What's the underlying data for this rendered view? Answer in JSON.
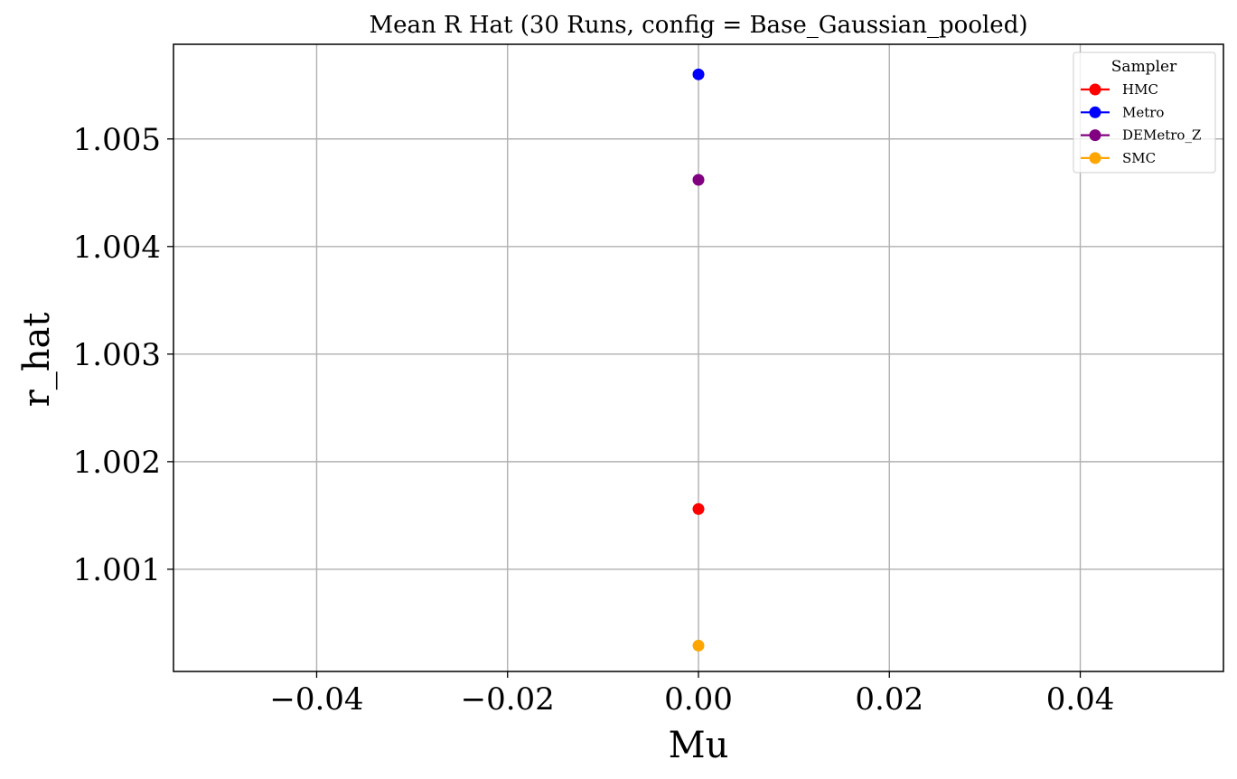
{
  "chart_data": {
    "type": "scatter",
    "title": "Mean R Hat (30 Runs, config = Base_Gaussian_pooled)",
    "xlabel": "Mu",
    "ylabel": "r_hat",
    "xlim": [
      -0.055,
      0.055
    ],
    "ylim": [
      1.00005,
      1.00588
    ],
    "xticks": [
      -0.04,
      -0.02,
      0.0,
      0.02,
      0.04
    ],
    "xtick_labels": [
      "−0.04",
      "−0.02",
      "0.00",
      "0.02",
      "0.04"
    ],
    "yticks": [
      1.001,
      1.002,
      1.003,
      1.004,
      1.005
    ],
    "ytick_labels": [
      "1.001",
      "1.002",
      "1.003",
      "1.004",
      "1.005"
    ],
    "grid": true,
    "legend": {
      "title": "Sampler",
      "placement": "top-right"
    },
    "series": [
      {
        "name": "HMC",
        "color": "#ff0000",
        "x": [
          0.0
        ],
        "y": [
          1.00156
        ]
      },
      {
        "name": "Metro",
        "color": "#0000ff",
        "x": [
          0.0
        ],
        "y": [
          1.0056
        ]
      },
      {
        "name": "DEMetro_Z",
        "color": "#800080",
        "x": [
          0.0
        ],
        "y": [
          1.00462
        ]
      },
      {
        "name": "SMC",
        "color": "#ffa500",
        "x": [
          0.0
        ],
        "y": [
          1.00029
        ]
      }
    ]
  }
}
